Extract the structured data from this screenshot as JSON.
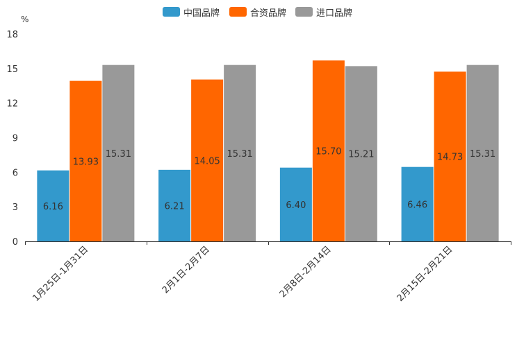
{
  "chart_data": {
    "type": "bar",
    "title": "",
    "ylabel": "%",
    "xlabel": "",
    "categories": [
      "1月25日-1月31日",
      "2月1日-2月7日",
      "2月8日-2月14日",
      "2月15日-2月21日"
    ],
    "series": [
      {
        "name": "中国品牌",
        "color": "#3399cc",
        "values": [
          6.16,
          6.21,
          6.4,
          6.46
        ],
        "labels": [
          "6.16",
          "6.21",
          "6.40",
          "6.46"
        ]
      },
      {
        "name": "合资品牌",
        "color": "#ff6600",
        "values": [
          13.93,
          14.05,
          15.7,
          14.73
        ],
        "labels": [
          "13.93",
          "14.05",
          "15.70",
          "14.73"
        ]
      },
      {
        "name": "进口品牌",
        "color": "#999999",
        "values": [
          15.31,
          15.31,
          15.21,
          15.31
        ],
        "labels": [
          "15.31",
          "15.31",
          "15.21",
          "15.31"
        ]
      }
    ],
    "ylim": [
      0,
      18
    ],
    "yticks": [
      0,
      3,
      6,
      9,
      12,
      15,
      18
    ],
    "ytick_labels": [
      "0",
      "3",
      "6",
      "9",
      "12",
      "15",
      "18"
    ],
    "grid": false,
    "legend_position": "top-center"
  }
}
